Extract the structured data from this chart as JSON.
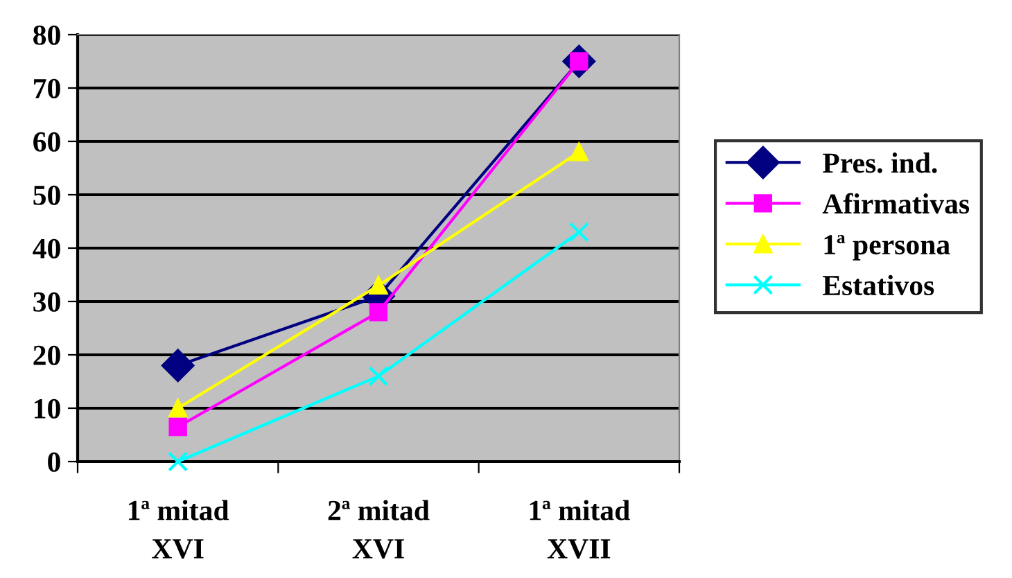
{
  "chart_data": {
    "type": "line",
    "categories": [
      "1ª mitad\nXVI",
      "2ª mitad\nXVI",
      "1ª mitad\nXVII"
    ],
    "series": [
      {
        "name": "Pres. ind.",
        "color": "#000080",
        "marker": "diamond",
        "values": [
          18,
          31,
          75
        ]
      },
      {
        "name": "Afirmativas",
        "color": "#ff00ff",
        "marker": "square",
        "values": [
          6.5,
          28,
          75
        ]
      },
      {
        "name": "1ª persona",
        "color": "#ffff00",
        "marker": "triangle",
        "values": [
          10,
          33,
          58
        ]
      },
      {
        "name": "Estativos",
        "color": "#00ffff",
        "marker": "cross",
        "values": [
          0,
          16,
          43
        ]
      }
    ],
    "ylim": [
      0,
      80
    ],
    "yticks": [
      0,
      10,
      20,
      30,
      40,
      50,
      60,
      70,
      80
    ],
    "grid": "y",
    "legend": "right",
    "line_style": "solid"
  }
}
